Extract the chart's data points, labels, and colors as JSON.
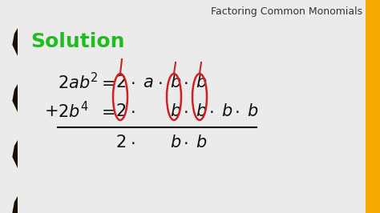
{
  "bg_color": "#ebebeb",
  "left_bar_color": "#1a0f00",
  "right_bar_color": "#f5a800",
  "title_text": "Factoring Common Monomials",
  "title_color": "#333333",
  "solution_color": "#22bb22",
  "text_color": "#111111",
  "circle_color": "#cc2222",
  "font_size_main": 15,
  "font_size_title": 9,
  "font_size_solution": 18,
  "fig_w": 4.74,
  "fig_h": 2.66,
  "dpi": 100
}
